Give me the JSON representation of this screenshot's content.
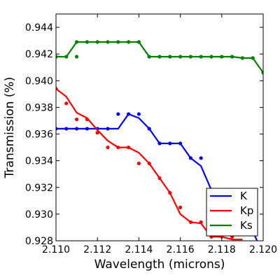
{
  "chart_data": {
    "type": "line",
    "xlabel": "Wavelength (microns)",
    "ylabel": "Transmission (%)",
    "xlim": [
      2.11,
      2.12
    ],
    "ylim": [
      0.928,
      0.945
    ],
    "xticks": [
      "2.110",
      "2.112",
      "2.114",
      "2.116",
      "2.118",
      "2.120"
    ],
    "yticks": [
      "0.928",
      "0.930",
      "0.932",
      "0.934",
      "0.936",
      "0.938",
      "0.940",
      "0.942",
      "0.944"
    ],
    "xtick_values": [
      2.11,
      2.112,
      2.114,
      2.116,
      2.118,
      2.12
    ],
    "ytick_values": [
      0.928,
      0.93,
      0.932,
      0.934,
      0.936,
      0.938,
      0.94,
      0.942,
      0.944
    ],
    "legend_position": "lower-right",
    "grid": false,
    "series": [
      {
        "name": "K",
        "color": "#0000ff",
        "line": {
          "x": [
            2.11,
            2.1105,
            2.111,
            2.1115,
            2.112,
            2.1125,
            2.113,
            2.1135,
            2.114,
            2.1145,
            2.115,
            2.1155,
            2.116,
            2.1165,
            2.117,
            2.1175,
            2.118,
            2.1185,
            2.119,
            2.1195,
            2.12
          ],
          "y": [
            0.9364,
            0.9364,
            0.9364,
            0.9364,
            0.9364,
            0.9364,
            0.9364,
            0.9375,
            0.9372,
            0.9364,
            0.9353,
            0.9353,
            0.9353,
            0.9342,
            0.9336,
            0.9318,
            0.9313,
            0.9307,
            0.9298,
            0.9287,
            0.927
          ]
        },
        "points": {
          "x": [
            2.11,
            2.1105,
            2.111,
            2.1115,
            2.112,
            2.1125,
            2.113,
            2.1135,
            2.114,
            2.1145,
            2.115,
            2.1155,
            2.116,
            2.1165,
            2.117,
            2.1175,
            2.118,
            2.1185,
            2.119,
            2.1195,
            2.12
          ],
          "y": [
            0.9364,
            0.9364,
            0.9364,
            0.9364,
            0.9364,
            0.9364,
            0.9375,
            0.9375,
            0.9375,
            0.9364,
            0.9353,
            0.9353,
            0.9353,
            0.9342,
            0.9342,
            0.9318,
            0.9318,
            0.9307,
            0.9296,
            0.9285,
            0.927
          ]
        }
      },
      {
        "name": "Kp",
        "color": "#ff0000",
        "line": {
          "x": [
            2.11,
            2.1105,
            2.111,
            2.1115,
            2.112,
            2.1125,
            2.113,
            2.1135,
            2.114,
            2.1145,
            2.115,
            2.1155,
            2.116,
            2.1165,
            2.117,
            2.1175,
            2.118,
            2.1185,
            2.119
          ],
          "y": [
            0.9394,
            0.9388,
            0.9376,
            0.9372,
            0.9363,
            0.9355,
            0.935,
            0.935,
            0.9346,
            0.9338,
            0.9327,
            0.9316,
            0.93,
            0.9294,
            0.9293,
            0.9283,
            0.9283,
            0.9281,
            0.9281
          ]
        },
        "points": {
          "x": [
            2.11,
            2.1105,
            2.111,
            2.1115,
            2.112,
            2.1125,
            2.113,
            2.1135,
            2.114,
            2.1145,
            2.115,
            2.1155,
            2.116,
            2.1165,
            2.117,
            2.1175,
            2.118,
            2.1185
          ],
          "y": [
            0.9394,
            0.9383,
            0.9371,
            0.9371,
            0.9361,
            0.935,
            0.935,
            0.935,
            0.9338,
            0.9338,
            0.9327,
            0.9316,
            0.9305,
            0.9294,
            0.9294,
            0.9283,
            0.9283,
            0.9283
          ]
        }
      },
      {
        "name": "Ks",
        "color": "#008000",
        "line": {
          "x": [
            2.11,
            2.1105,
            2.111,
            2.1115,
            2.112,
            2.1125,
            2.113,
            2.1135,
            2.114,
            2.1145,
            2.115,
            2.1155,
            2.116,
            2.1165,
            2.117,
            2.1175,
            2.118,
            2.1185,
            2.119,
            2.1195,
            2.12
          ],
          "y": [
            0.9418,
            0.9418,
            0.9429,
            0.9429,
            0.9429,
            0.9429,
            0.9429,
            0.9429,
            0.9429,
            0.9418,
            0.9418,
            0.9418,
            0.9418,
            0.9418,
            0.9418,
            0.9418,
            0.9418,
            0.9418,
            0.9417,
            0.9417,
            0.9406
          ]
        },
        "points": {
          "x": [
            2.11,
            2.1105,
            2.111,
            2.1115,
            2.112,
            2.1125,
            2.113,
            2.1135,
            2.114,
            2.1145,
            2.115,
            2.1155,
            2.116,
            2.1165,
            2.117,
            2.1175,
            2.118,
            2.1185,
            2.119,
            2.1195,
            2.12
          ],
          "y": [
            0.9418,
            0.9418,
            0.9429,
            0.9429,
            0.9429,
            0.9429,
            0.9429,
            0.9429,
            0.9429,
            0.9418,
            0.9418,
            0.9418,
            0.9418,
            0.9418,
            0.9418,
            0.9418,
            0.9418,
            0.9418,
            0.9417,
            0.9417,
            0.9406
          ]
        },
        "extra_points": {
          "x": [
            2.111
          ],
          "y": [
            0.9418
          ]
        }
      }
    ]
  }
}
